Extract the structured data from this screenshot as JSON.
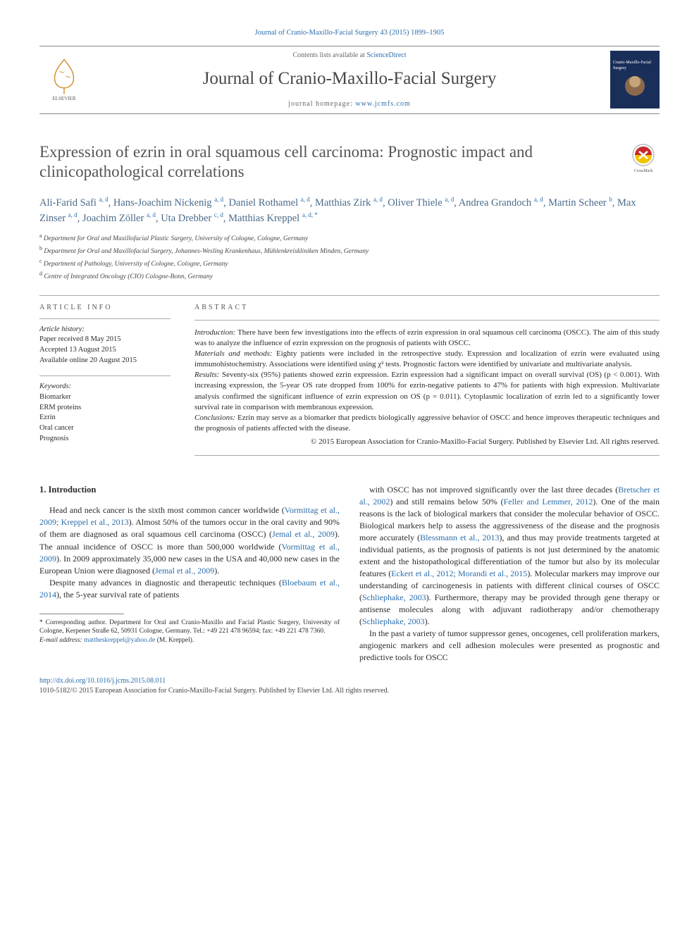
{
  "header_ref": "Journal of Cranio-Maxillo-Facial Surgery 43 (2015) 1899–1905",
  "masthead": {
    "contents_pre": "Contents lists available at ",
    "contents_link": "ScienceDirect",
    "journal_title": "Journal of Cranio-Maxillo-Facial Surgery",
    "homepage_pre": "journal homepage: ",
    "homepage_link": "www.jcmfs.com",
    "publisher_label": "ELSEVIER",
    "cover_label": "Cranio-Maxillo-Facial Surgery"
  },
  "title": "Expression of ezrin in oral squamous cell carcinoma: Prognostic impact and clinicopathological correlations",
  "crossmark_label": "CrossMark",
  "authors_html": "Ali-Farid Safi <sup>a, d</sup>, Hans-Joachim Nickenig <sup>a, d</sup>, Daniel Rothamel <sup>a, d</sup>, Matthias Zirk <sup>a, d</sup>, Oliver Thiele <sup>a, d</sup>, Andrea Grandoch <sup>a, d</sup>, Martin Scheer <sup>b</sup>, Max Zinser <sup>a, d</sup>, Joachim Zöller <sup>a, d</sup>, Uta Drebber <sup>c, d</sup>, Matthias Kreppel <sup>a, d, *</sup>",
  "affiliations": [
    {
      "sup": "a",
      "text": "Department for Oral and Maxillofacial Plastic Surgery, University of Cologne, Cologne, Germany"
    },
    {
      "sup": "b",
      "text": "Department for Oral and Maxillofacial Surgery, Johannes-Wesling Krankenhaus, Mühlenkreiskliniken Minden, Germany"
    },
    {
      "sup": "c",
      "text": "Department of Pathology, University of Cologne, Cologne, Germany"
    },
    {
      "sup": "d",
      "text": "Centre of Integrated Oncology (CIO) Cologne-Bonn, Germany"
    }
  ],
  "info": {
    "head": "ARTICLE INFO",
    "history_head": "Article history:",
    "history": [
      "Paper received 8 May 2015",
      "Accepted 13 August 2015",
      "Available online 20 August 2015"
    ],
    "keywords_head": "Keywords:",
    "keywords": [
      "Biomarker",
      "ERM proteins",
      "Ezrin",
      "Oral cancer",
      "Prognosis"
    ]
  },
  "abstract": {
    "head": "ABSTRACT",
    "intro_label": "Introduction:",
    "intro": " There have been few investigations into the effects of ezrin expression in oral squamous cell carcinoma (OSCC). The aim of this study was to analyze the influence of ezrin expression on the prognosis of patients with OSCC.",
    "methods_label": "Materials and methods:",
    "methods": " Eighty patients were included in the retrospective study. Expression and localization of ezrin were evaluated using immunohistochemistry. Associations were identified using χ² tests. Prognostic factors were identified by univariate and multivariate analysis.",
    "results_label": "Results:",
    "results": " Seventy-six (95%) patients showed ezrin expression. Ezrin expression had a significant impact on overall survival (OS) (p < 0.001). With increasing expression, the 5-year OS rate dropped from 100% for ezrin-negative patients to 47% for patients with high expression. Multivariate analysis confirmed the significant influence of ezrin expression on OS (p = 0.011). Cytoplasmic localization of ezrin led to a significantly lower survival rate in comparison with membranous expression.",
    "conclusions_label": "Conclusions:",
    "conclusions": " Ezrin may serve as a biomarker that predicts biologically aggressive behavior of OSCC and hence improves therapeutic techniques and the prognosis of patients affected with the disease.",
    "copyright": "© 2015 European Association for Cranio-Maxillo-Facial Surgery. Published by Elsevier Ltd. All rights reserved."
  },
  "body": {
    "section_num": "1.",
    "section_title": "Introduction",
    "col1_html": "Head and neck cancer is the sixth most common cancer worldwide (<a>Vormittag et al., 2009; Kreppel et al., 2013</a>). Almost 50% of the tumors occur in the oral cavity and 90% of them are diagnosed as oral squamous cell carcinoma (OSCC) (<a>Jemal et al., 2009</a>). The annual incidence of OSCC is more than 500,000 worldwide (<a>Vormittag et al., 2009</a>). In 2009 approximately 35,000 new cases in the USA and 40,000 new cases in the European Union were diagnosed (<a>Jemal et al., 2009</a>).",
    "col1b_html": "Despite many advances in diagnostic and therapeutic techniques (<a>Bloebaum et al., 2014</a>), the 5-year survival rate of patients",
    "col2_html": "with OSCC has not improved significantly over the last three decades (<a>Bretscher et al., 2002</a>) and still remains below 50% (<a>Feller and Lemmer, 2012</a>). One of the main reasons is the lack of biological markers that consider the molecular behavior of OSCC. Biological markers help to assess the aggressiveness of the disease and the prognosis more accurately (<a>Blessmann et al., 2013</a>), and thus may provide treatments targeted at individual patients, as the prognosis of patients is not just determined by the anatomic extent and the histopathological differentiation of the tumor but also by its molecular features (<a>Eckert et al., 2012; Morandi et al., 2015</a>). Molecular markers may improve our understanding of carcinogenesis in patients with different clinical courses of OSCC (<a>Schliephake, 2003</a>). Furthermore, therapy may be provided through gene therapy or antisense molecules along with adjuvant radiotherapy and/or chemotherapy (<a>Schliephake, 2003</a>).",
    "col2b_html": "In the past a variety of tumor suppressor genes, oncogenes, cell proliferation markers, angiogenic markers and cell adhesion molecules were presented as prognostic and predictive tools for OSCC"
  },
  "footnote": {
    "corr": "* Corresponding author. Department for Oral and Cranio-Maxillo and Facial Plastic Surgery, University of Cologne, Kerpener Straße 62, 50931 Cologne, Germany. Tel.: +49 221 478 96594; fax: +49 221 478 7360.",
    "email_label": "E-mail address:",
    "email": "mattheskreppel@yahoo.de",
    "email_post": " (M. Kreppel)."
  },
  "doi": {
    "url": "http://dx.doi.org/10.1016/j.jcms.2015.08.011",
    "issn": "1010-5182/© 2015 European Association for Cranio-Maxillo-Facial Surgery. Published by Elsevier Ltd. All rights reserved."
  },
  "colors": {
    "link": "#2a6dac",
    "heading": "#555555",
    "author": "#4a6a8a",
    "text": "#2a2a2a",
    "rule": "#aaaaaa"
  }
}
